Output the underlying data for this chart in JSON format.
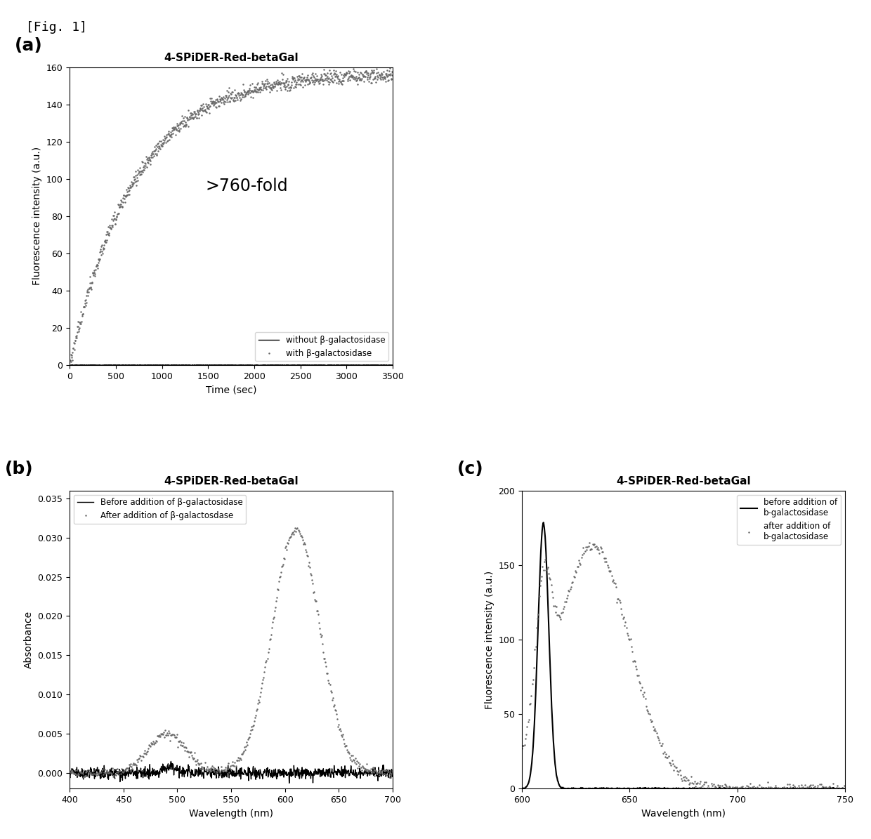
{
  "fig_label": "[Fig. 1]",
  "panel_a": {
    "title": "4-SPiDER-Red-betaGal",
    "xlabel": "Time (sec)",
    "ylabel": "Fluorescence intensity (a.u.)",
    "xlim": [
      0,
      3500
    ],
    "ylim": [
      0,
      160
    ],
    "xticks": [
      0,
      500,
      1000,
      1500,
      2000,
      2500,
      3000,
      3500
    ],
    "yticks": [
      0,
      20,
      40,
      60,
      80,
      100,
      120,
      140,
      160
    ],
    "annotation": ">760-fold",
    "legend": [
      "without β-galactosidase",
      "with β-galactosidase"
    ]
  },
  "panel_b": {
    "title": "4-SPiDER-Red-betaGal",
    "xlabel": "Wavelength (nm)",
    "ylabel": "Absorbance",
    "xlim": [
      400,
      700
    ],
    "ylim": [
      -0.002,
      0.036
    ],
    "xticks": [
      400,
      450,
      500,
      550,
      600,
      650,
      700
    ],
    "yticks": [
      0,
      0.005,
      0.01,
      0.015,
      0.02,
      0.025,
      0.03,
      0.035
    ],
    "legend": [
      "Before addition of β-galactosidase",
      "After addition of β-galactosdase"
    ]
  },
  "panel_c": {
    "title": "4-SPiDER-Red-betaGal",
    "xlabel": "Wavelength (nm)",
    "ylabel": "Fluorescence intensity (a.u.)",
    "xlim": [
      600,
      750
    ],
    "ylim": [
      0,
      200
    ],
    "xticks": [
      600,
      650,
      700,
      750
    ],
    "yticks": [
      0,
      50,
      100,
      150,
      200
    ],
    "legend": [
      "before addition of\nb-galactosidase",
      "after addition of\nb-galactosidase"
    ]
  },
  "line_color_solid": "#000000",
  "line_color_dotted": "#666666",
  "background_color": "#ffffff"
}
